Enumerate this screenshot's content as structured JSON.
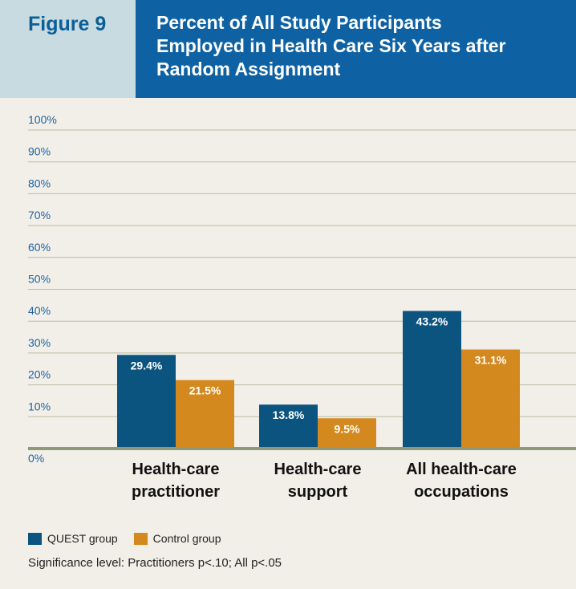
{
  "header": {
    "figure_label": "Figure 9",
    "title_lines": [
      "Percent of All Study Participants",
      "Employed in Health Care Six Years after",
      "Random Assignment"
    ]
  },
  "colors": {
    "quest": "#0c5480",
    "control": "#d4891f",
    "gridline": "#b9bea1",
    "baseline": "#8c9a78",
    "tick_text": "#1d62a0",
    "title_bg": "#0e62a4",
    "figure_bg": "#c8dbe0",
    "page_bg": "#f2efe8"
  },
  "chart_data": {
    "type": "bar",
    "title": "Percent of All Study Participants Employed in Health Care Six Years after Random Assignment",
    "categories": [
      [
        "Health-care",
        "practitioner"
      ],
      [
        "Health-care",
        "support"
      ],
      [
        "All health-care",
        "occupations"
      ]
    ],
    "series": [
      {
        "name": "QUEST group",
        "values": [
          29.4,
          13.8,
          43.2
        ],
        "labels": [
          "29.4%",
          "13.8%",
          "43.2%"
        ]
      },
      {
        "name": "Control group",
        "values": [
          21.5,
          9.5,
          31.1
        ],
        "labels": [
          "21.5%",
          "9.5%",
          "31.1%"
        ]
      }
    ],
    "yticks": [
      "0%",
      "10%",
      "20%",
      "30%",
      "40%",
      "50%",
      "60%",
      "70%",
      "80%",
      "90%",
      "100%"
    ],
    "ylim": [
      0,
      100
    ],
    "grid": true,
    "legend_position": "bottom-left"
  },
  "legend": {
    "quest_label": "QUEST group",
    "control_label": "Control group"
  },
  "note": "Significance level: Practitioners p<.10; All p<.05"
}
